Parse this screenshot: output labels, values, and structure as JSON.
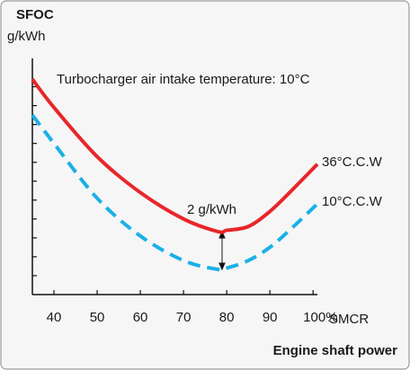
{
  "chart_data": {
    "type": "line",
    "title": "SFOC",
    "y_label": "g/kWh",
    "x_label": "Engine shaft power",
    "x_unit": "SMCR",
    "annotations": [
      "Turbocharger air intake temperature: 10°C",
      "2 g/kWh"
    ],
    "x": [
      35,
      40,
      50,
      60,
      70,
      78,
      80,
      85,
      90,
      95,
      101
    ],
    "series": [
      {
        "name": "36°C.C.W",
        "color": "#e8262a",
        "dashed": false,
        "values": [
          11.4,
          9.9,
          7.3,
          5.4,
          4.0,
          3.33,
          3.4,
          3.6,
          4.4,
          5.5,
          6.9
        ]
      },
      {
        "name": "10°C.C.W",
        "color": "#1ab0e8",
        "dashed": true,
        "values": [
          9.5,
          8.0,
          5.1,
          3.1,
          1.8,
          1.33,
          1.4,
          1.8,
          2.5,
          3.5,
          4.8
        ]
      }
    ],
    "xlim": [
      35,
      101
    ],
    "xticks": [
      40,
      50,
      60,
      70,
      80,
      90,
      {
        "value": 100,
        "label": "100%"
      }
    ],
    "ylim": [
      0,
      12.5
    ],
    "yticks": [
      1,
      2,
      3,
      4,
      5,
      6,
      7,
      8,
      9,
      10,
      11
    ]
  }
}
